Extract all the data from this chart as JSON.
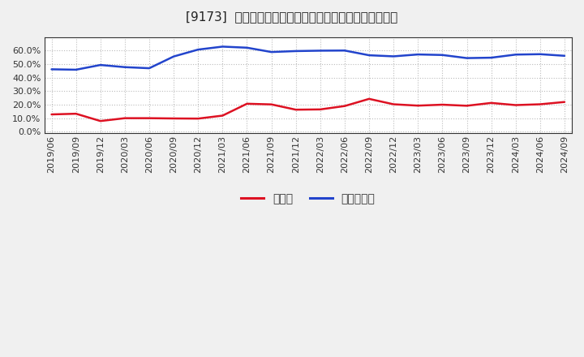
{
  "title": "[9173]  現顔金、有利子負債の総資産に対する比率の推移",
  "dates": [
    "2019/06",
    "2019/09",
    "2019/12",
    "2020/03",
    "2020/06",
    "2020/09",
    "2020/12",
    "2021/03",
    "2021/06",
    "2021/09",
    "2021/12",
    "2022/03",
    "2022/06",
    "2022/09",
    "2022/12",
    "2023/03",
    "2023/06",
    "2023/09",
    "2023/12",
    "2024/03",
    "2024/06",
    "2024/09"
  ],
  "cash": [
    0.128,
    0.133,
    0.079,
    0.1,
    0.1,
    0.098,
    0.097,
    0.119,
    0.207,
    0.202,
    0.163,
    0.165,
    0.19,
    0.243,
    0.203,
    0.193,
    0.2,
    0.192,
    0.213,
    0.197,
    0.203,
    0.22
  ],
  "debt": [
    0.462,
    0.459,
    0.494,
    0.478,
    0.47,
    0.557,
    0.608,
    0.63,
    0.622,
    0.59,
    0.597,
    0.6,
    0.601,
    0.566,
    0.558,
    0.572,
    0.568,
    0.545,
    0.548,
    0.571,
    0.574,
    0.562
  ],
  "cash_color": "#dd1122",
  "debt_color": "#2244cc",
  "background_color": "#f0f0f0",
  "plot_bg_color": "#ffffff",
  "grid_color": "#bbbbbb",
  "legend_cash": "現顔金",
  "legend_debt": "有利子負債",
  "yticks": [
    0.0,
    0.1,
    0.2,
    0.3,
    0.4,
    0.5,
    0.6
  ],
  "ylim": [
    -0.01,
    0.7
  ],
  "title_fontsize": 11,
  "tick_fontsize": 8,
  "legend_fontsize": 10,
  "line_width": 1.8
}
